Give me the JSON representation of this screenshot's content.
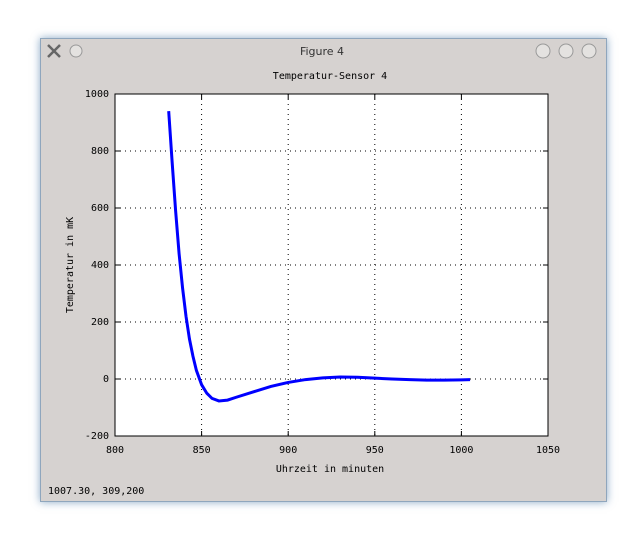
{
  "window": {
    "title": "Figure 4",
    "status": "1007.30,  309,200"
  },
  "chart_data": {
    "type": "line",
    "title": "Temperatur-Sensor 4",
    "x_label": "Uhrzeit in minuten",
    "y_label": "Temperatur in mK",
    "x": [
      831,
      833,
      835,
      837,
      839,
      841,
      843,
      845,
      847,
      850,
      853,
      856,
      860,
      865,
      870,
      880,
      890,
      900,
      910,
      920,
      930,
      940,
      950,
      960,
      970,
      980,
      990,
      1000,
      1005
    ],
    "series": [
      {
        "color": "#0000ff",
        "values": [
          940,
          760,
          590,
          440,
          320,
          220,
          140,
          80,
          30,
          -20,
          -50,
          -68,
          -77,
          -74,
          -64,
          -45,
          -26,
          -12,
          -2,
          4,
          7,
          6,
          3,
          0,
          -2,
          -4,
          -4,
          -3,
          -2
        ]
      }
    ],
    "xlim": [
      800,
      1050
    ],
    "xticks": [
      800,
      850,
      900,
      950,
      1000,
      1050
    ],
    "ylim": [
      -200,
      1000
    ],
    "yticks": [
      -200,
      0,
      200,
      400,
      600,
      800,
      1000
    ],
    "grid": true
  }
}
